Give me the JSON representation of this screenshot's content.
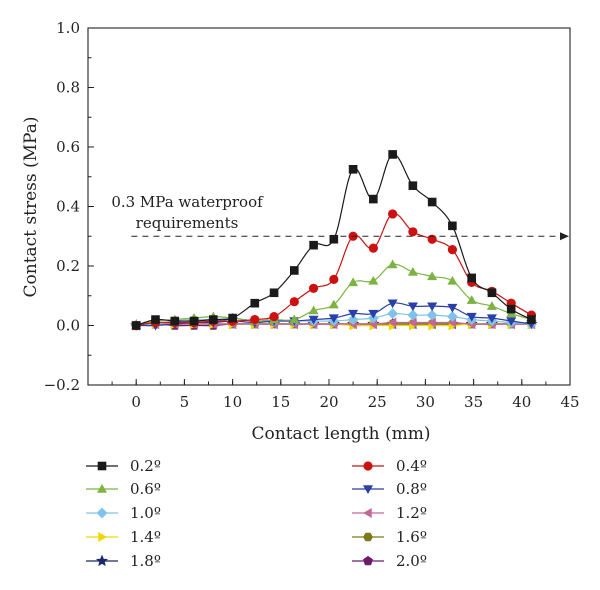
{
  "chart_data": {
    "type": "line",
    "xlabel": "Contact length (mm)",
    "ylabel": "Contact stress (MPa)",
    "xlim": [
      -5,
      45
    ],
    "ylim": [
      -0.2,
      1.0
    ],
    "xticks": [
      0,
      5,
      10,
      15,
      20,
      25,
      30,
      35,
      40,
      45
    ],
    "yticks": [
      -0.2,
      0.0,
      0.2,
      0.4,
      0.6,
      0.8,
      1.0
    ],
    "ytick_labels": [
      "−0.2",
      "0.0",
      "0.2",
      "0.4",
      "0.6",
      "0.8",
      "1.0"
    ],
    "grid": false,
    "legend_position": "bottom",
    "reference_line": {
      "y": 0.3,
      "style": "dashed",
      "label_line1": "0.3 MPa waterproof",
      "label_line2": "requirements"
    },
    "series": [
      {
        "name": "0.2º",
        "color": "#1a1a1a",
        "marker": "square",
        "x": [
          0,
          2,
          4,
          6,
          8,
          10,
          12.3,
          14.3,
          16.4,
          18.4,
          20.5,
          22.5,
          24.6,
          26.6,
          28.7,
          30.7,
          32.8,
          34.8,
          36.9,
          38.9,
          41
        ],
        "y": [
          0.0,
          0.02,
          0.015,
          0.015,
          0.02,
          0.025,
          0.075,
          0.11,
          0.185,
          0.27,
          0.29,
          0.525,
          0.425,
          0.575,
          0.47,
          0.415,
          0.335,
          0.16,
          0.11,
          0.055,
          0.02
        ]
      },
      {
        "name": "0.4º",
        "color": "#cc1111",
        "marker": "circle",
        "x": [
          0,
          2,
          4,
          6,
          8,
          10,
          12.3,
          14.3,
          16.4,
          18.4,
          20.5,
          22.5,
          24.6,
          26.6,
          28.7,
          30.7,
          32.8,
          34.8,
          36.9,
          38.9,
          41
        ],
        "y": [
          0.0,
          0.01,
          0.01,
          0.01,
          0.015,
          0.015,
          0.02,
          0.03,
          0.08,
          0.125,
          0.155,
          0.3,
          0.26,
          0.375,
          0.315,
          0.29,
          0.255,
          0.145,
          0.115,
          0.075,
          0.035
        ]
      },
      {
        "name": "0.6º",
        "color": "#7cb342",
        "marker": "triangle-up",
        "x": [
          0,
          2,
          4,
          6,
          8,
          10,
          12.3,
          14.3,
          16.4,
          18.4,
          20.5,
          22.5,
          24.6,
          26.6,
          28.7,
          30.7,
          32.8,
          34.8,
          36.9,
          38.9,
          41
        ],
        "y": [
          0.0,
          0.015,
          0.02,
          0.025,
          0.03,
          0.025,
          0.015,
          0.02,
          0.02,
          0.05,
          0.07,
          0.145,
          0.15,
          0.205,
          0.18,
          0.165,
          0.15,
          0.085,
          0.065,
          0.04,
          0.02
        ]
      },
      {
        "name": "0.8º",
        "color": "#2b3fa8",
        "marker": "triangle-down",
        "x": [
          0,
          2,
          4,
          6,
          8,
          10,
          12.3,
          14.3,
          16.4,
          18.4,
          20.5,
          22.5,
          24.6,
          26.6,
          28.7,
          30.7,
          32.8,
          34.8,
          36.9,
          38.9,
          41
        ],
        "y": [
          0.0,
          0.0,
          0.005,
          0.01,
          0.01,
          0.015,
          0.01,
          0.015,
          0.015,
          0.02,
          0.025,
          0.04,
          0.04,
          0.075,
          0.065,
          0.065,
          0.06,
          0.03,
          0.025,
          0.015,
          0.005
        ]
      },
      {
        "name": "1.0º",
        "color": "#7fc4e8",
        "marker": "diamond",
        "x": [
          0,
          2,
          4,
          6,
          8,
          10,
          12.3,
          14.3,
          16.4,
          18.4,
          20.5,
          22.5,
          24.6,
          26.6,
          28.7,
          30.7,
          32.8,
          34.8,
          36.9,
          38.9,
          41
        ],
        "y": [
          0.0,
          0.005,
          0.015,
          0.02,
          0.02,
          0.025,
          0.015,
          0.015,
          0.015,
          0.015,
          0.015,
          0.02,
          0.025,
          0.04,
          0.035,
          0.035,
          0.03,
          0.02,
          0.015,
          0.01,
          0.005
        ]
      },
      {
        "name": "1.2º",
        "color": "#c2679a",
        "marker": "triangle-left",
        "x": [
          0,
          2,
          4,
          6,
          8,
          10,
          12.3,
          14.3,
          16.4,
          18.4,
          20.5,
          22.5,
          24.6,
          26.6,
          28.7,
          30.7,
          32.8,
          34.8,
          36.9,
          38.9,
          41
        ],
        "y": [
          0.0,
          0.005,
          0.005,
          0.005,
          0.005,
          0.005,
          0.005,
          0.005,
          0.005,
          0.005,
          0.005,
          0.005,
          0.005,
          0.01,
          0.01,
          0.01,
          0.01,
          0.005,
          0.005,
          0.005,
          0.005
        ]
      },
      {
        "name": "1.4º",
        "color": "#f2d600",
        "marker": "triangle-right",
        "x": [
          0,
          2,
          4,
          6,
          8,
          10,
          12.3,
          14.3,
          16.4,
          18.4,
          20.5,
          22.5,
          24.6,
          26.6,
          28.7,
          30.7,
          32.8,
          34.8,
          36.9,
          38.9,
          41
        ],
        "y": [
          0.0,
          0.005,
          0.005,
          0.005,
          0.005,
          0.005,
          0.005,
          0.005,
          0.005,
          0.005,
          0.005,
          0.0,
          0.0,
          0.0,
          0.0,
          0.0,
          0.0,
          0.005,
          0.005,
          0.005,
          0.005
        ]
      },
      {
        "name": "1.6º",
        "color": "#7a7a1a",
        "marker": "hexagon",
        "x": [
          0,
          2,
          4,
          6,
          8,
          10,
          12.3,
          14.3,
          16.4,
          18.4,
          20.5,
          22.5,
          24.6,
          26.6,
          28.7,
          30.7,
          32.8,
          34.8,
          36.9,
          38.9,
          41
        ],
        "y": [
          0.0,
          0.005,
          0.005,
          0.005,
          0.005,
          0.005,
          0.005,
          0.005,
          0.005,
          0.005,
          0.005,
          0.005,
          0.005,
          0.005,
          0.005,
          0.005,
          0.005,
          0.005,
          0.005,
          0.005,
          0.005
        ]
      },
      {
        "name": "1.8º",
        "color": "#1c2766",
        "marker": "star",
        "x": [
          0,
          2,
          4,
          6,
          8,
          10,
          12.3,
          14.3,
          16.4,
          18.4,
          20.5,
          22.5,
          24.6,
          26.6,
          28.7,
          30.7,
          32.8,
          34.8,
          36.9,
          38.9,
          41
        ],
        "y": [
          0.0,
          0.005,
          0.005,
          0.005,
          0.005,
          0.005,
          0.005,
          0.005,
          0.005,
          0.005,
          0.005,
          0.005,
          0.005,
          0.005,
          0.005,
          0.005,
          0.005,
          0.005,
          0.005,
          0.005,
          0.005
        ]
      },
      {
        "name": "2.0º",
        "color": "#6a1b6f",
        "marker": "pentagon",
        "x": [
          0,
          2,
          4,
          6,
          8,
          10,
          12.3,
          14.3,
          16.4,
          18.4,
          20.5,
          22.5,
          24.6,
          26.6,
          28.7,
          30.7,
          32.8,
          34.8,
          36.9,
          38.9,
          41
        ],
        "y": [
          0.0,
          0.005,
          0.0,
          0.0,
          0.0,
          0.005,
          0.005,
          0.005,
          0.005,
          0.005,
          0.005,
          0.005,
          0.005,
          0.005,
          0.005,
          0.005,
          0.005,
          0.005,
          0.005,
          0.005,
          0.005
        ]
      }
    ]
  }
}
